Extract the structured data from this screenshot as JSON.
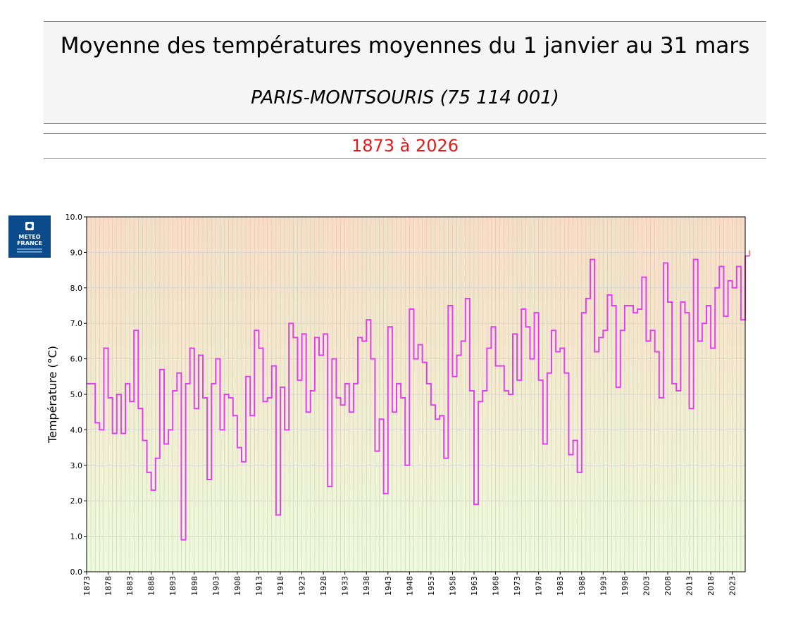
{
  "header": {
    "title": "Moyenne des températures moyennes du 1 janvier au 31 mars",
    "station": "PARIS-MONTSOURIS (75 114 001)",
    "period": "1873 à 2026"
  },
  "logo": {
    "line1": "METEO",
    "line2": "FRANCE",
    "icon": "meteo-france-logo"
  },
  "colors": {
    "series": "#e040f0",
    "period_text": "#e11b1b",
    "bg_top": "#f9dcc7",
    "bg_bottom": "#eefbdc"
  },
  "chart_data": {
    "type": "line",
    "step": true,
    "ylabel": "Température (°C)",
    "xlabel": "",
    "ylim": [
      0,
      10
    ],
    "yticks": [
      "0.0",
      "1.0",
      "2.0",
      "3.0",
      "4.0",
      "5.0",
      "6.0",
      "7.0",
      "8.0",
      "9.0",
      "10.0"
    ],
    "x_tick_labels": [
      "1873",
      "1878",
      "1883",
      "1888",
      "1893",
      "1898",
      "1903",
      "1908",
      "1913",
      "1918",
      "1923",
      "1928",
      "1933",
      "1938",
      "1943",
      "1948",
      "1953",
      "1958",
      "1963",
      "1968",
      "1973",
      "1978",
      "1983",
      "1988",
      "1993",
      "1998",
      "2003",
      "2008",
      "2013",
      "2018",
      "2023"
    ],
    "x_start": 1873,
    "x_end": 2026,
    "grid": true,
    "series": [
      {
        "values": [
          5.3,
          5.3,
          4.2,
          4.0,
          6.3,
          4.9,
          3.9,
          5.0,
          3.9,
          5.3,
          4.8,
          6.8,
          4.6,
          3.7,
          2.8,
          2.3,
          3.2,
          5.7,
          3.6,
          4.0,
          5.1,
          5.6,
          0.9,
          5.3,
          6.3,
          4.6,
          6.1,
          4.9,
          2.6,
          5.3,
          6.0,
          4.0,
          5.0,
          4.9,
          4.4,
          3.5,
          3.1,
          5.5,
          4.4,
          6.8,
          6.3,
          4.8,
          4.9,
          5.8,
          1.6,
          5.2,
          4.0,
          7.0,
          6.6,
          5.4,
          6.7,
          4.5,
          5.1,
          6.6,
          6.1,
          6.7,
          2.4,
          6.0,
          4.9,
          4.7,
          5.3,
          4.5,
          5.3,
          6.6,
          6.5,
          7.1,
          6.0,
          3.4,
          4.3,
          2.2,
          6.9,
          4.5,
          5.3,
          4.9,
          3.0,
          7.4,
          6.0,
          6.4,
          5.9,
          5.3,
          4.7,
          4.3,
          4.4,
          3.2,
          7.5,
          5.5,
          6.1,
          6.5,
          7.7,
          5.1,
          1.9,
          4.8,
          5.1,
          6.3,
          6.9,
          5.8,
          5.8,
          5.1,
          5.0,
          6.7,
          5.4,
          7.4,
          6.9,
          6.0,
          7.3,
          5.4,
          3.6,
          5.6,
          6.8,
          6.2,
          6.3,
          5.6,
          3.3,
          3.7,
          2.8,
          7.3,
          7.7,
          8.8,
          6.2,
          6.6,
          6.8,
          7.8,
          7.5,
          5.2,
          6.8,
          7.5,
          7.5,
          7.3,
          7.4,
          8.3,
          6.5,
          6.8,
          6.2,
          4.9,
          8.7,
          7.6,
          5.3,
          5.1,
          7.6,
          7.3,
          4.6,
          8.8,
          6.5,
          7.0,
          7.5,
          6.3,
          8.0,
          8.6,
          7.2,
          8.2,
          8.0,
          8.6,
          7.1,
          8.9
        ]
      }
    ]
  }
}
